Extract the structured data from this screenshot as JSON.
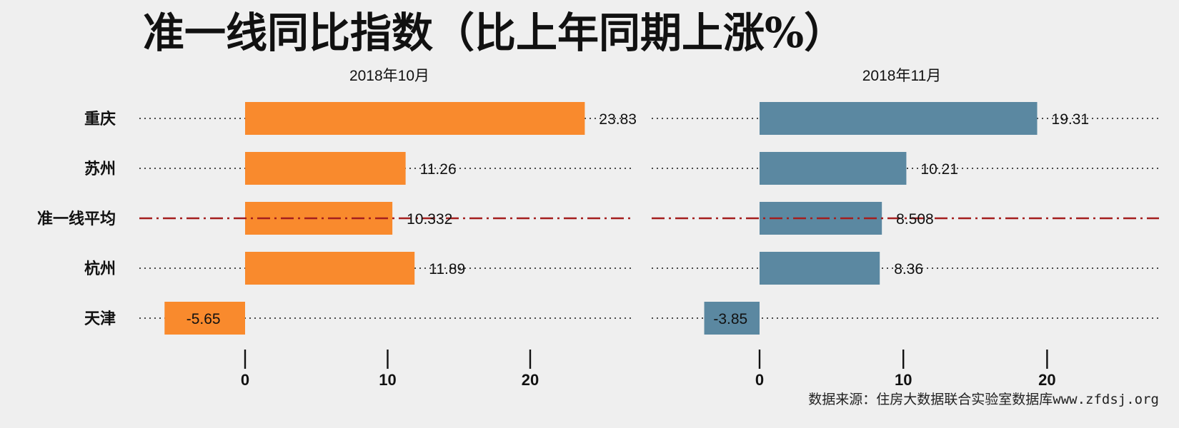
{
  "title": "准一线同比指数（比上年同期上涨%）",
  "source": "数据来源：住房大数据联合实验室数据库www.zfdsj.org",
  "colors": {
    "background": "#efefef",
    "left_bar": "#f98a2d",
    "right_bar": "#5b88a1",
    "average_line": "#a41e1e",
    "text": "#111111"
  },
  "chart_data": [
    {
      "type": "bar",
      "orientation": "horizontal",
      "title": "2018年10月",
      "categories": [
        "重庆",
        "苏州",
        "准一线平均",
        "杭州",
        "天津"
      ],
      "values": [
        23.83,
        11.26,
        10.332,
        11.89,
        -5.65
      ],
      "value_labels": [
        "23.83",
        "11.26",
        "10.332",
        "11.89",
        "-5.65"
      ],
      "xlim": [
        -5.65,
        27
      ],
      "xticks": [
        0,
        10,
        20
      ],
      "xtick_labels": [
        "0",
        "10",
        "20"
      ],
      "average_category": "准一线平均",
      "grid": "dotted horizontal lines per category"
    },
    {
      "type": "bar",
      "orientation": "horizontal",
      "title": "2018年11月",
      "categories": [
        "重庆",
        "苏州",
        "准一线平均",
        "杭州",
        "天津"
      ],
      "values": [
        19.31,
        10.21,
        8.508,
        8.36,
        -3.85
      ],
      "value_labels": [
        "19.31",
        "10.21",
        "8.508",
        "8.36",
        "-3.85"
      ],
      "xlim": [
        -3.85,
        27.5
      ],
      "xticks": [
        0,
        10,
        20
      ],
      "xtick_labels": [
        "0",
        "10",
        "20"
      ],
      "average_category": "准一线平均",
      "grid": "dotted horizontal lines per category"
    }
  ]
}
